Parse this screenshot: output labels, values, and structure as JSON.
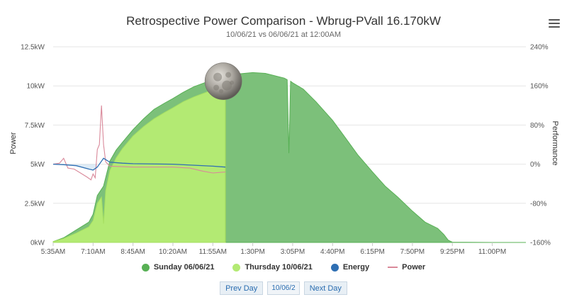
{
  "header": {
    "title": "Retrospective Power Comparison - Wbrug-PVall 16.170kW",
    "subtitle": "10/06/21 vs 06/06/21 at 12:00AM"
  },
  "nav": {
    "prev_label": "Prev Day",
    "date_value": "10/06/2",
    "next_label": "Next Day"
  },
  "colors": {
    "sunday": "#58b055",
    "thursday": "#b3ea73",
    "energy": "#2f6fb3",
    "power": "#d9899a"
  },
  "chart_data": {
    "type": "area",
    "ylabel": "Power",
    "y2label": "Performance",
    "x_ticks": [
      "5:35AM",
      "7:10AM",
      "8:45AM",
      "10:20AM",
      "11:55AM",
      "1:30PM",
      "3:05PM",
      "4:40PM",
      "6:15PM",
      "7:50PM",
      "9:25PM",
      "11:00PM"
    ],
    "xlim": [
      "5:35AM",
      "12:20AM"
    ],
    "y_ticks": [
      "0kW",
      "2.5kW",
      "5kW",
      "7.5kW",
      "10kW",
      "12.5kW"
    ],
    "ylim": [
      0,
      12.5
    ],
    "y2_ticks": [
      "-160%",
      "-80%",
      "0%",
      "80%",
      "160%",
      "240%"
    ],
    "y2lim": [
      -160,
      240
    ],
    "grid": true,
    "legend": {
      "position": "bottom",
      "items": [
        {
          "label": "Sunday 06/06/21",
          "key": "sunday",
          "marker": "dot"
        },
        {
          "label": "Thursday 10/06/21",
          "key": "thursday",
          "marker": "dot"
        },
        {
          "label": "Energy",
          "key": "energy",
          "marker": "dot"
        },
        {
          "label": "Power",
          "key": "power",
          "marker": "line"
        }
      ]
    },
    "series": [
      {
        "name": "Sunday 06/06/21",
        "type": "area",
        "points": [
          [
            "5:35AM",
            0.05
          ],
          [
            "6:00AM",
            0.3
          ],
          [
            "6:30AM",
            0.8
          ],
          [
            "7:00AM",
            1.3
          ],
          [
            "7:10AM",
            1.8
          ],
          [
            "7:20AM",
            3.0
          ],
          [
            "7:35AM",
            3.6
          ],
          [
            "7:50AM",
            5.2
          ],
          [
            "8:05AM",
            5.9
          ],
          [
            "8:20AM",
            6.4
          ],
          [
            "8:45AM",
            7.2
          ],
          [
            "9:10AM",
            7.9
          ],
          [
            "9:35AM",
            8.5
          ],
          [
            "10:00AM",
            8.9
          ],
          [
            "10:20AM",
            9.2
          ],
          [
            "10:45AM",
            9.6
          ],
          [
            "11:10AM",
            9.95
          ],
          [
            "11:35AM",
            10.2
          ],
          [
            "11:55AM",
            10.4
          ],
          [
            "12:20PM",
            10.6
          ],
          [
            "12:50PM",
            10.75
          ],
          [
            "1:30PM",
            10.85
          ],
          [
            "2:00PM",
            10.8
          ],
          [
            "2:30PM",
            10.6
          ],
          [
            "2:45PM",
            10.5
          ],
          [
            "2:52PM",
            10.4
          ],
          [
            "2:56PM",
            5.7
          ],
          [
            "3:00PM",
            10.3
          ],
          [
            "3:05PM",
            10.2
          ],
          [
            "3:30PM",
            9.8
          ],
          [
            "4:00PM",
            9.0
          ],
          [
            "4:40PM",
            7.8
          ],
          [
            "5:10PM",
            6.7
          ],
          [
            "5:40PM",
            5.6
          ],
          [
            "6:15PM",
            4.5
          ],
          [
            "6:45PM",
            3.6
          ],
          [
            "7:15PM",
            2.9
          ],
          [
            "7:50PM",
            2.0
          ],
          [
            "8:20PM",
            1.3
          ],
          [
            "8:50PM",
            0.9
          ],
          [
            "9:05PM",
            0.5
          ],
          [
            "9:15PM",
            0.15
          ],
          [
            "9:25PM",
            0.02
          ],
          [
            "11:00PM",
            0.0
          ],
          [
            "12:20AM",
            0.0
          ]
        ]
      },
      {
        "name": "Thursday 10/06/21",
        "type": "area",
        "points": [
          [
            "5:35AM",
            0.05
          ],
          [
            "6:00AM",
            0.25
          ],
          [
            "6:30AM",
            0.6
          ],
          [
            "7:00AM",
            1.0
          ],
          [
            "7:10AM",
            1.4
          ],
          [
            "7:20AM",
            2.5
          ],
          [
            "7:30AM",
            2.9
          ],
          [
            "7:35AM",
            1.2
          ],
          [
            "7:40AM",
            3.3
          ],
          [
            "7:50AM",
            4.6
          ],
          [
            "8:05AM",
            5.4
          ],
          [
            "8:20AM",
            6.0
          ],
          [
            "8:45AM",
            6.8
          ],
          [
            "9:10AM",
            7.4
          ],
          [
            "9:35AM",
            7.9
          ],
          [
            "10:00AM",
            8.3
          ],
          [
            "10:20AM",
            8.6
          ],
          [
            "10:45AM",
            9.0
          ],
          [
            "11:10AM",
            9.3
          ],
          [
            "11:35AM",
            9.55
          ],
          [
            "11:55AM",
            9.75
          ],
          [
            "12:20PM",
            9.85
          ],
          [
            "12:25PM",
            9.85
          ]
        ]
      },
      {
        "name": "Energy",
        "type": "line",
        "axis": "performance",
        "points": [
          [
            "5:35AM",
            0
          ],
          [
            "6:00AM",
            -1
          ],
          [
            "6:30AM",
            -3
          ],
          [
            "7:00AM",
            -10
          ],
          [
            "7:10AM",
            -12
          ],
          [
            "7:20AM",
            -6
          ],
          [
            "7:35AM",
            12
          ],
          [
            "7:50AM",
            4
          ],
          [
            "8:20AM",
            2
          ],
          [
            "8:45AM",
            1
          ],
          [
            "10:20AM",
            0
          ],
          [
            "11:55AM",
            -4
          ],
          [
            "12:25PM",
            -6
          ]
        ]
      },
      {
        "name": "Power",
        "type": "line",
        "axis": "performance",
        "points": [
          [
            "5:35AM",
            0
          ],
          [
            "5:50AM",
            2
          ],
          [
            "6:00AM",
            12
          ],
          [
            "6:10AM",
            -8
          ],
          [
            "6:25AM",
            -10
          ],
          [
            "6:40AM",
            -18
          ],
          [
            "6:55AM",
            -26
          ],
          [
            "7:05AM",
            -32
          ],
          [
            "7:10AM",
            -20
          ],
          [
            "7:15AM",
            -28
          ],
          [
            "7:20AM",
            30
          ],
          [
            "7:25AM",
            40
          ],
          [
            "7:30AM",
            120
          ],
          [
            "7:35AM",
            40
          ],
          [
            "7:40AM",
            5
          ],
          [
            "7:50AM",
            -4
          ],
          [
            "8:20AM",
            -5
          ],
          [
            "8:45AM",
            -6
          ],
          [
            "10:20AM",
            -6
          ],
          [
            "11:00AM",
            -8
          ],
          [
            "11:30AM",
            -14
          ],
          [
            "11:55AM",
            -18
          ],
          [
            "12:25PM",
            -16
          ]
        ]
      }
    ],
    "moon_marker": {
      "x": "12:20PM",
      "value": 10.3
    }
  }
}
